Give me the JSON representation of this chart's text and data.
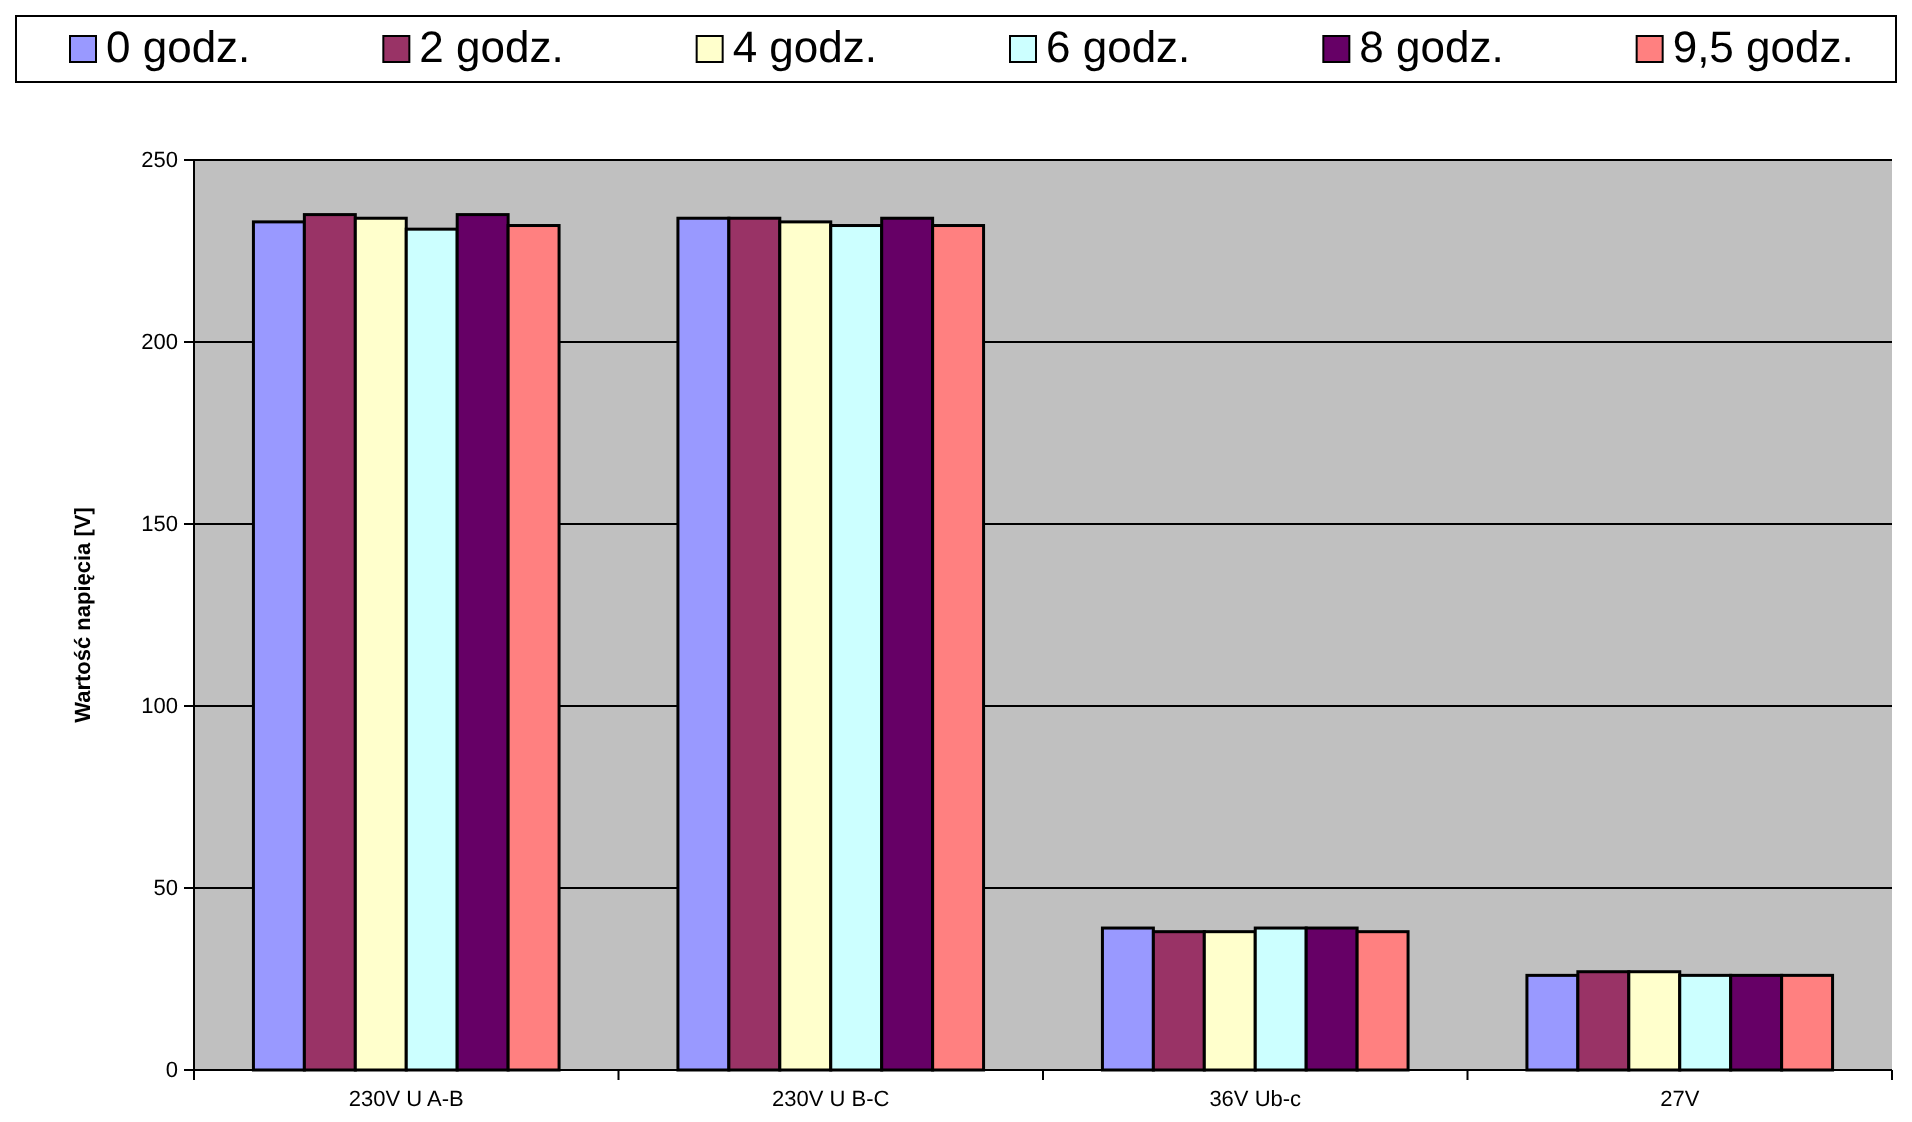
{
  "chart_data": {
    "type": "bar",
    "ylabel": "Wartość napięcia [V]",
    "categories": [
      "230V U A-B",
      "230V U B-C",
      "36V Ub-c",
      "27V"
    ],
    "series": [
      {
        "name": "0 godz.",
        "color": "#9999ff",
        "values": [
          233,
          234,
          39,
          26
        ]
      },
      {
        "name": "2 godz.",
        "color": "#993366",
        "values": [
          235,
          234,
          38,
          27
        ]
      },
      {
        "name": "4 godz.",
        "color": "#ffffcc",
        "values": [
          234,
          233,
          38,
          27
        ]
      },
      {
        "name": "6 godz.",
        "color": "#ccffff",
        "values": [
          231,
          232,
          39,
          26
        ]
      },
      {
        "name": "8 godz.",
        "color": "#660066",
        "values": [
          235,
          234,
          39,
          26
        ]
      },
      {
        "name": "9,5 godz.",
        "color": "#ff8080",
        "values": [
          232,
          232,
          38,
          26
        ]
      }
    ],
    "ylim": [
      0,
      250
    ],
    "yticks": [
      0,
      50,
      100,
      150,
      200,
      250
    ],
    "grid": "y",
    "legend": "top"
  }
}
